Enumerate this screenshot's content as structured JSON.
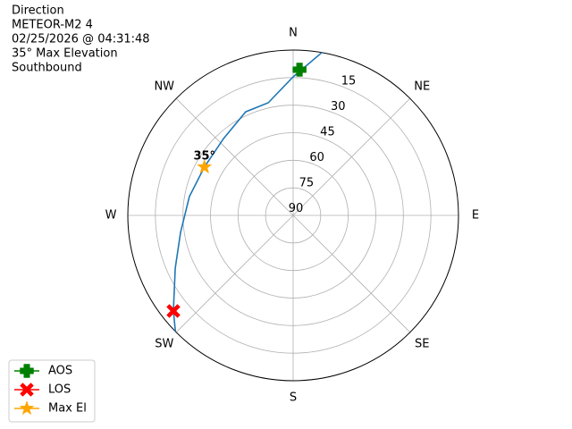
{
  "chart_data": {
    "type": "polar",
    "title_lines": [
      "Direction",
      "METEOR-M2 4",
      "02/25/2026 @ 04:31:48",
      "35° Max Elevation",
      "Southbound"
    ],
    "theta_zero": "N",
    "theta_direction": "clockwise",
    "rlim": [
      90,
      0
    ],
    "rticks": [
      15,
      30,
      45,
      60,
      75,
      90
    ],
    "rtick_angle": 22.5,
    "thetaticks": [
      {
        "value": 0,
        "label": "N"
      },
      {
        "value": 45,
        "label": "NE"
      },
      {
        "value": 90,
        "label": "E"
      },
      {
        "value": 135,
        "label": "SE"
      },
      {
        "value": 180,
        "label": "S"
      },
      {
        "value": 225,
        "label": "SW"
      },
      {
        "value": 270,
        "label": "W"
      },
      {
        "value": 315,
        "label": "NW"
      }
    ],
    "grid": true,
    "track": {
      "color": "#1f77b4",
      "theta": [
        10.0,
        0,
        347.5,
        335.4,
        317.8,
        298.6,
        280.3,
        261.4,
        245.9,
        231.4,
        225.4
      ],
      "r": [
        0,
        14.6,
        27.2,
        28,
        33.6,
        35,
        32.6,
        28,
        19.7,
        6.6,
        0
      ]
    },
    "markers": [
      {
        "name": "AOS",
        "marker": "plus",
        "color": "#008000",
        "theta": 2.5,
        "r": 10.6
      },
      {
        "name": "LOS",
        "marker": "x",
        "color": "#ff0000",
        "theta": 231.4,
        "r": 6.6
      },
      {
        "name": "Max El",
        "marker": "star",
        "color": "#ffa500",
        "theta": 298.6,
        "r": 35
      }
    ],
    "annotation": {
      "text": "35°",
      "theta": 298.6,
      "r": 35
    },
    "legend": "lower left"
  }
}
